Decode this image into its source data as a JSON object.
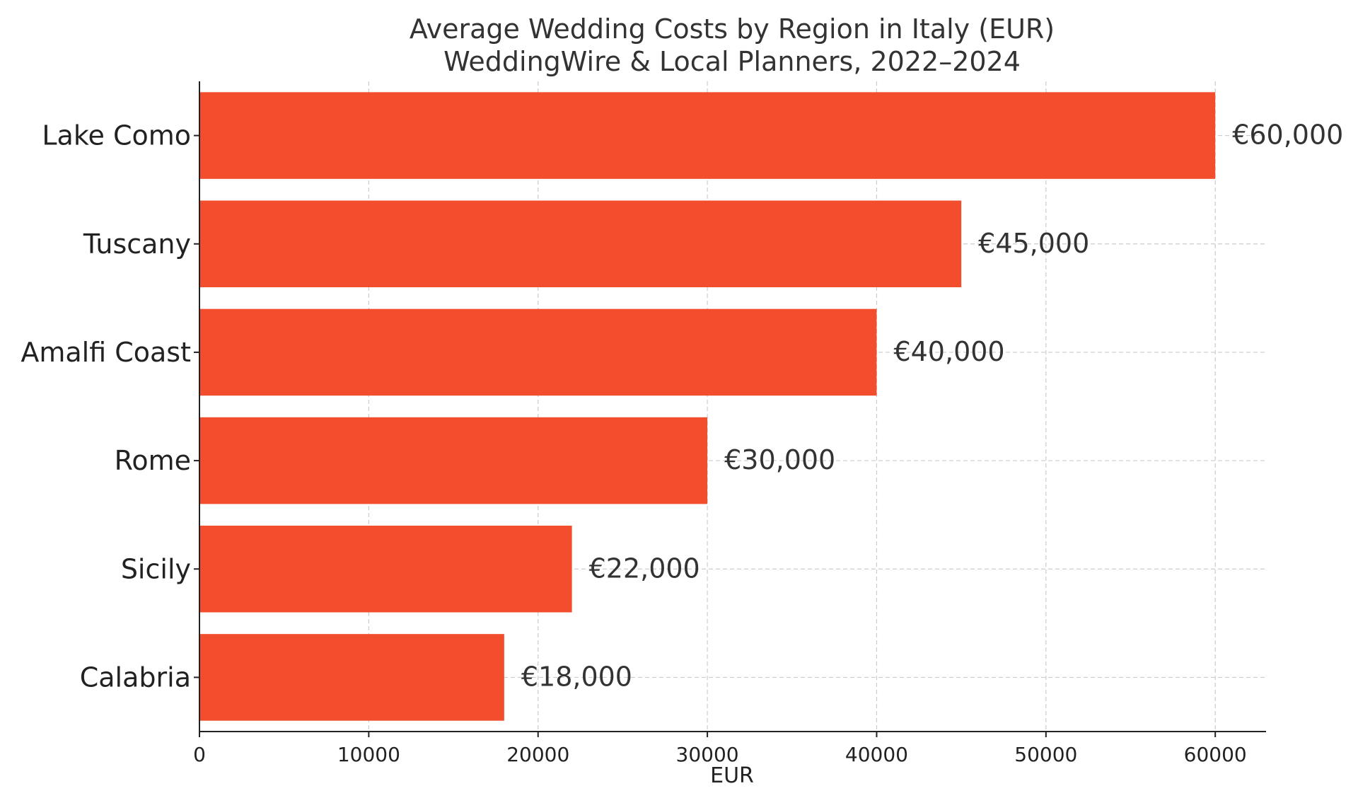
{
  "chart_data": {
    "type": "bar",
    "orientation": "horizontal",
    "title": "Average Wedding Costs by Region in Italy (EUR)",
    "subtitle": "WeddingWire & Local Planners, 2022–2024",
    "xlabel": "EUR",
    "ylabel": "",
    "categories": [
      "Lake Como",
      "Tuscany",
      "Amalfi Coast",
      "Rome",
      "Sicily",
      "Calabria"
    ],
    "values": [
      60000,
      45000,
      40000,
      30000,
      22000,
      18000
    ],
    "data_labels": [
      "€60,000",
      "€45,000",
      "€40,000",
      "€30,000",
      "€22,000",
      "€18,000"
    ],
    "xlim": [
      0,
      63000
    ],
    "xticks": [
      0,
      10000,
      20000,
      30000,
      40000,
      50000,
      60000
    ],
    "grid": true,
    "bar_color": "#f24e2e"
  }
}
